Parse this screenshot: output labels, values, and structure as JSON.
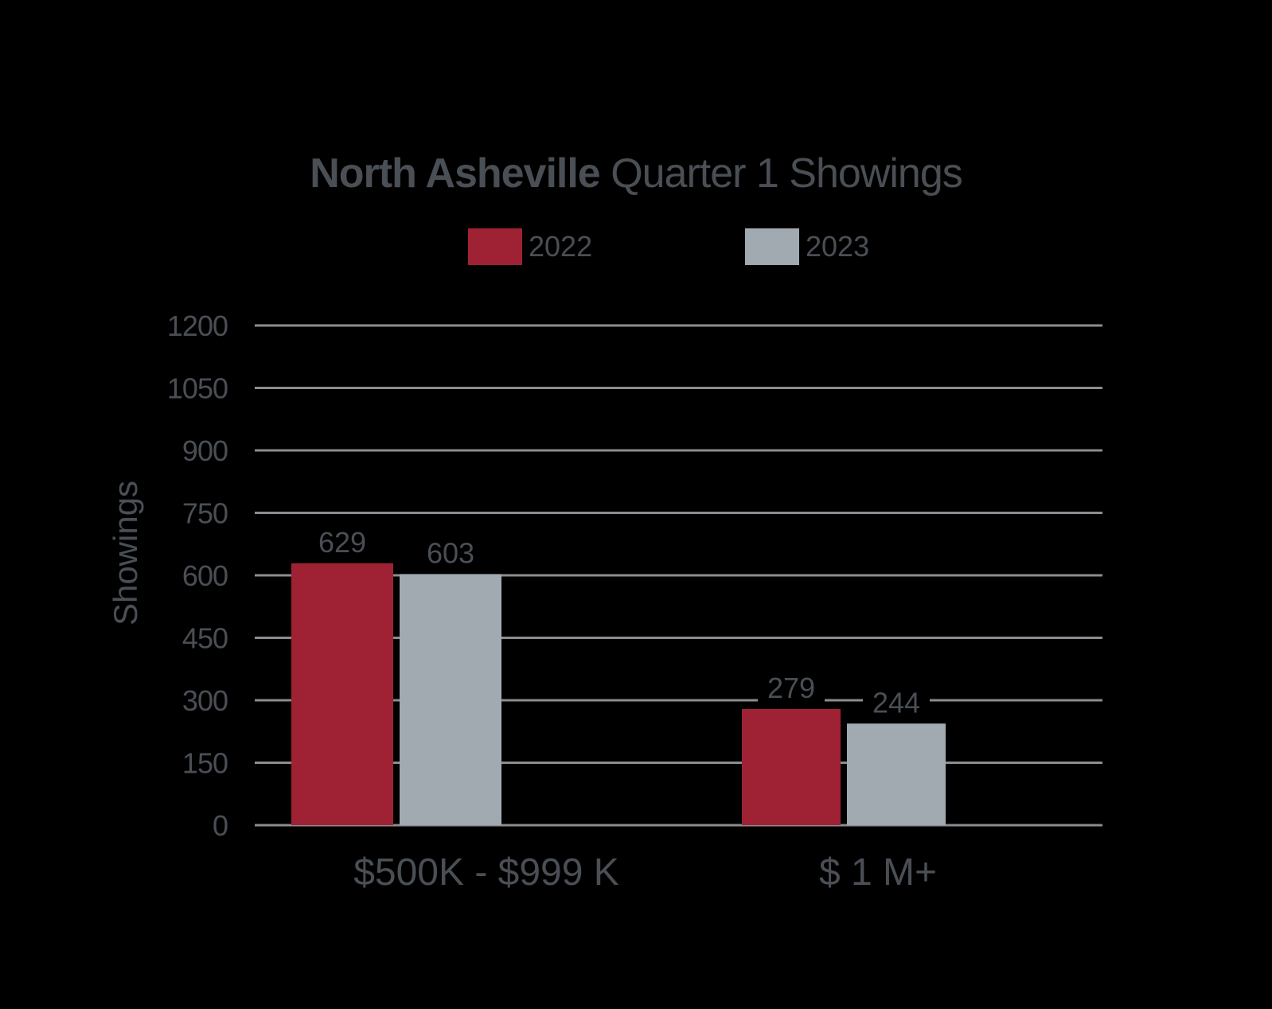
{
  "chart_data": {
    "type": "bar",
    "title_bold": "North Asheville",
    "title_rest": "Quarter 1 Showings",
    "ylabel": "Showings",
    "xlabel": "",
    "categories": [
      "$500K - $999 K",
      "$ 1 M+"
    ],
    "series": [
      {
        "name": "2022",
        "values": [
          629,
          279
        ],
        "color": "#9e2233"
      },
      {
        "name": "2023",
        "values": [
          603,
          244
        ],
        "color": "#a1aab1"
      }
    ],
    "ylim": [
      0,
      1200
    ],
    "yticks": [
      "0",
      "150",
      "300",
      "450",
      "600",
      "750",
      "900",
      "1050",
      "1200"
    ],
    "grid": true,
    "legend_position": "top-center",
    "background": "#000000",
    "text_color": "#4a4e55",
    "grid_color": "#8a8d91"
  }
}
